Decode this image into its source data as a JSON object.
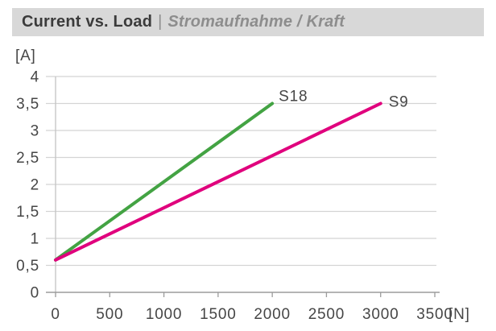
{
  "title": {
    "primary": "Current vs. Load",
    "separator": "|",
    "secondary": "Stromaufnahme / Kraft"
  },
  "chart_data": {
    "type": "line",
    "title": "Current vs. Load | Stromaufnahme / Kraft",
    "xlabel": "[N]",
    "ylabel": "[A]",
    "xlim": [
      0,
      3500
    ],
    "ylim": [
      0,
      4
    ],
    "x_ticks": [
      0,
      500,
      1000,
      1500,
      2000,
      2500,
      3000,
      3500
    ],
    "x_tick_labels": [
      "0",
      "500",
      "1000",
      "1500",
      "2000",
      "2500",
      "3000",
      "3500"
    ],
    "y_ticks": [
      0,
      0.5,
      1,
      1.5,
      2,
      2.5,
      3,
      3.5,
      4
    ],
    "y_tick_labels": [
      "0",
      "0,5",
      "1",
      "1,5",
      "2",
      "2,5",
      "3",
      "3,5",
      "4"
    ],
    "grid": true,
    "legend_position": "end-of-line-labels",
    "series": [
      {
        "name": "S18",
        "color": "#43a343",
        "points": [
          [
            0,
            0.6
          ],
          [
            2000,
            3.5
          ]
        ]
      },
      {
        "name": "S9",
        "color": "#e0007d",
        "points": [
          [
            0,
            0.6
          ],
          [
            3000,
            3.5
          ]
        ]
      }
    ]
  },
  "colors": {
    "title_bg": "#d8d8d8",
    "title_primary": "#3b3b3b",
    "title_secondary": "#8d8d8d",
    "axis_text": "#464646",
    "gridline": "#d4d4d4",
    "x_axis_line": "#9b9b9b",
    "y_axis_line": "#c4c4c4",
    "s18_green": "#43a343",
    "s9_magenta": "#e0007d"
  }
}
